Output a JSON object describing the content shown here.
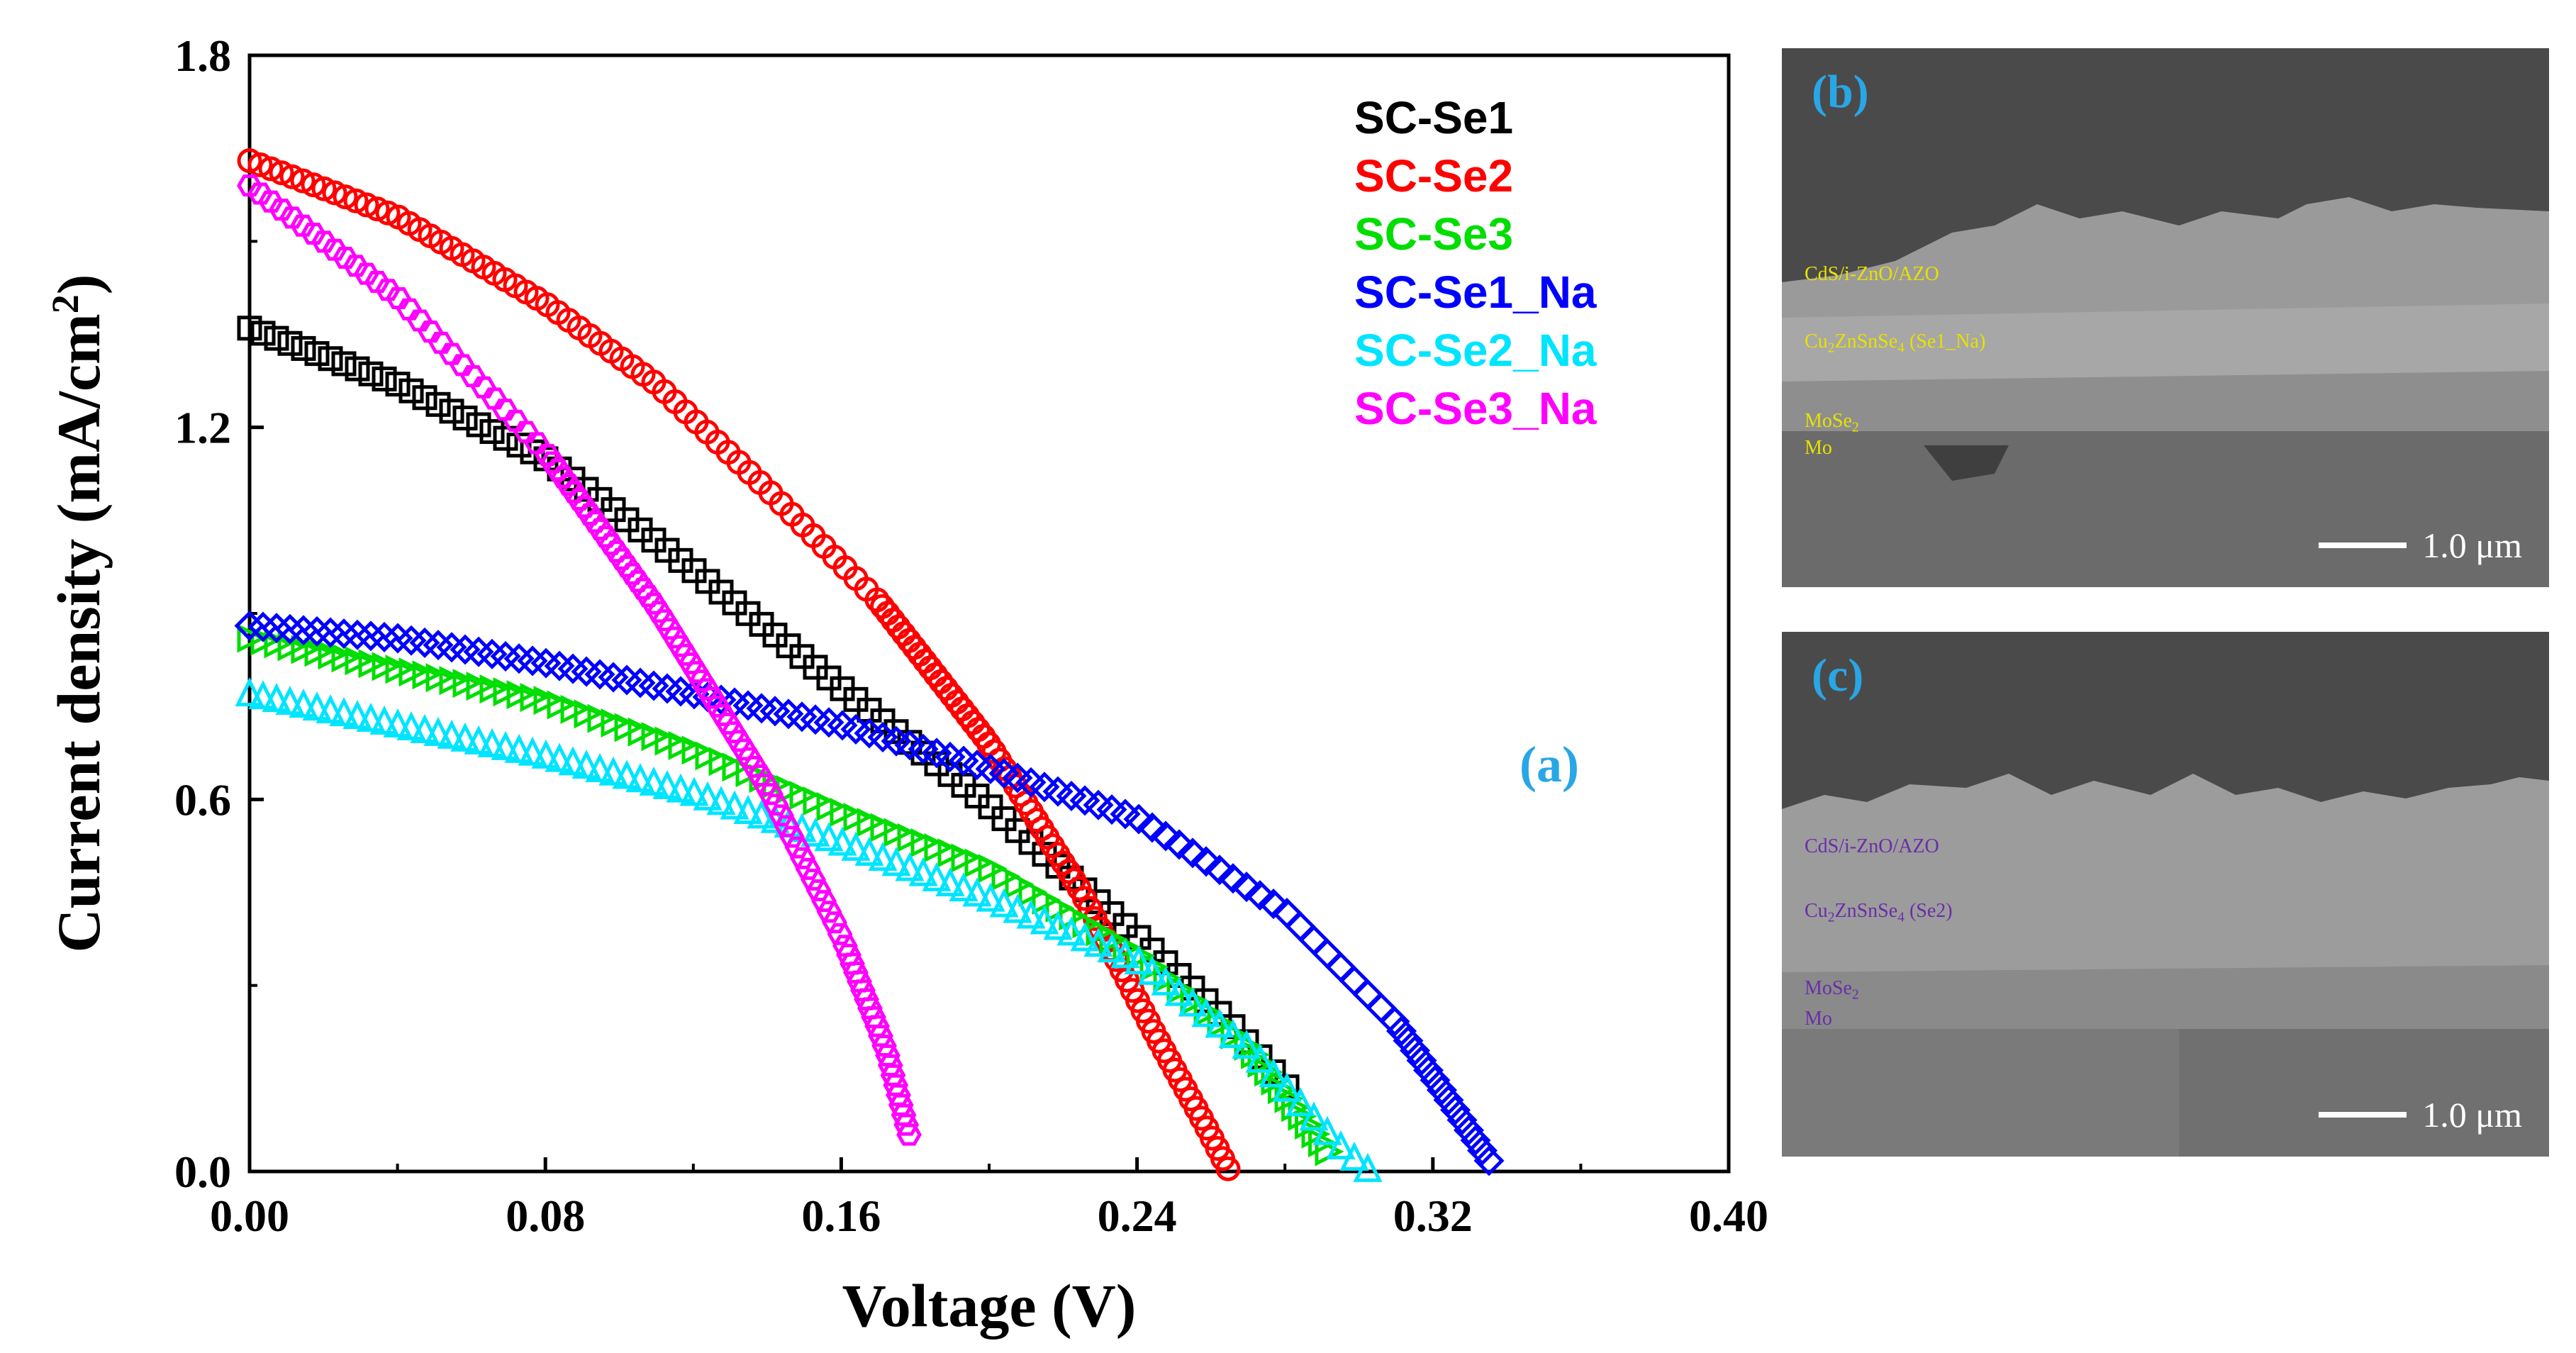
{
  "chart_data": {
    "type": "scatter",
    "panel_label": "(a)",
    "xlabel": "Voltage (V)",
    "ylabel": "Current density (mA/cm",
    "ylabel_sup": "2",
    "ylabel_close": ")",
    "xlim": [
      0,
      0.4
    ],
    "ylim": [
      0,
      1.8
    ],
    "xticks": [
      0.0,
      0.08,
      0.16,
      0.24,
      0.32,
      0.4
    ],
    "xtick_labels": [
      "0.00",
      "0.08",
      "0.16",
      "0.24",
      "0.32",
      "0.40"
    ],
    "yticks": [
      0.0,
      0.6,
      1.2,
      1.8
    ],
    "ytick_labels": [
      "0.0",
      "0.6",
      "1.2",
      "1.8"
    ],
    "legend_position": "top-right",
    "series": [
      {
        "name": "SC-Se1",
        "color": "#000000",
        "marker": "square",
        "points": [
          [
            0.0,
            1.36
          ],
          [
            0.04,
            1.27
          ],
          [
            0.08,
            1.15
          ],
          [
            0.12,
            0.97
          ],
          [
            0.16,
            0.78
          ],
          [
            0.2,
            0.59
          ],
          [
            0.24,
            0.38
          ],
          [
            0.265,
            0.24
          ],
          [
            0.283,
            0.12
          ]
        ]
      },
      {
        "name": "SC-Se2",
        "color": "#ff0000",
        "marker": "circle",
        "points": [
          [
            0.0,
            1.63
          ],
          [
            0.04,
            1.54
          ],
          [
            0.08,
            1.4
          ],
          [
            0.11,
            1.27
          ],
          [
            0.14,
            1.1
          ],
          [
            0.17,
            0.92
          ],
          [
            0.2,
            0.69
          ],
          [
            0.225,
            0.45
          ],
          [
            0.245,
            0.22
          ],
          [
            0.258,
            0.08
          ],
          [
            0.265,
            0.0
          ]
        ]
      },
      {
        "name": "SC-Se3",
        "color": "#00dd00",
        "marker": "triangle-right",
        "points": [
          [
            0.0,
            0.86
          ],
          [
            0.04,
            0.81
          ],
          [
            0.08,
            0.76
          ],
          [
            0.12,
            0.68
          ],
          [
            0.16,
            0.58
          ],
          [
            0.2,
            0.49
          ],
          [
            0.24,
            0.35
          ],
          [
            0.27,
            0.2
          ],
          [
            0.293,
            0.02
          ]
        ]
      },
      {
        "name": "SC-Se1_Na",
        "color": "#0000ff",
        "marker": "diamond",
        "points": [
          [
            0.0,
            0.88
          ],
          [
            0.04,
            0.86
          ],
          [
            0.08,
            0.82
          ],
          [
            0.12,
            0.77
          ],
          [
            0.16,
            0.72
          ],
          [
            0.2,
            0.65
          ],
          [
            0.24,
            0.57
          ],
          [
            0.28,
            0.42
          ],
          [
            0.31,
            0.24
          ],
          [
            0.326,
            0.1
          ],
          [
            0.336,
            0.01
          ]
        ]
      },
      {
        "name": "SC-Se2_Na",
        "color": "#00e5ff",
        "marker": "triangle-up",
        "points": [
          [
            0.0,
            0.77
          ],
          [
            0.04,
            0.72
          ],
          [
            0.08,
            0.67
          ],
          [
            0.12,
            0.61
          ],
          [
            0.16,
            0.53
          ],
          [
            0.2,
            0.44
          ],
          [
            0.24,
            0.34
          ],
          [
            0.27,
            0.2
          ],
          [
            0.295,
            0.04
          ],
          [
            0.303,
            0.0
          ]
        ]
      },
      {
        "name": "SC-Se3_Na",
        "color": "#ff00ff",
        "marker": "hexagon",
        "points": [
          [
            0.0,
            1.59
          ],
          [
            0.04,
            1.41
          ],
          [
            0.08,
            1.16
          ],
          [
            0.11,
            0.91
          ],
          [
            0.14,
            0.62
          ],
          [
            0.16,
            0.38
          ],
          [
            0.172,
            0.2
          ],
          [
            0.181,
            0.0
          ]
        ]
      }
    ]
  },
  "sem_b": {
    "label": "(b)",
    "layers": [
      "CdS/i-ZnO/AZO",
      "Cu",
      "2",
      "ZnSnSe",
      "4",
      " (Se1_Na)",
      "MoSe",
      "2",
      "Mo"
    ],
    "scale_text": "1.0 μm"
  },
  "sem_c": {
    "label": "(c)",
    "layers": [
      "CdS/i-ZnO/AZO",
      "Cu",
      "2",
      "ZnSnSe",
      "4",
      " (Se2)",
      "MoSe",
      "2",
      "Mo"
    ],
    "scale_text": "1.0 μm"
  },
  "colors": {
    "accent_label": "#29a6e5",
    "sem_b_label": "#e8e100",
    "sem_c_label": "#6a2ea8"
  }
}
